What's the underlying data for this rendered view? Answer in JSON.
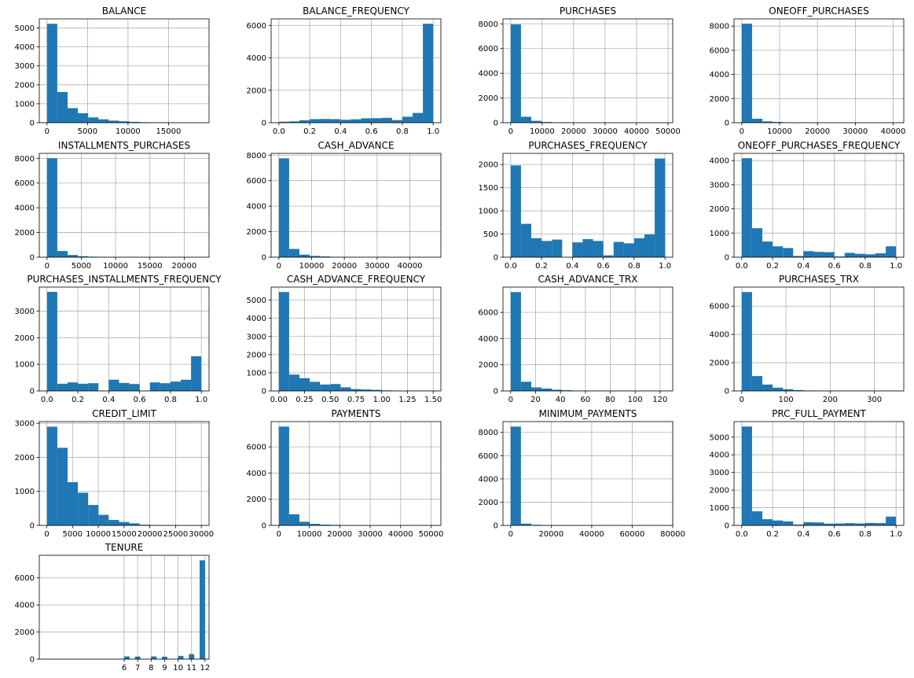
{
  "figure": {
    "bar_color": "#1f77b4",
    "grid_color": "#b0b0b0",
    "background": "#ffffff"
  },
  "chart_data": [
    {
      "type": "bar",
      "title": "BALANCE",
      "bin_edges": [
        0,
        1270,
        2540,
        3810,
        5080,
        6350,
        7620,
        8890,
        10160,
        11430,
        12700,
        13970,
        15240,
        16510,
        17780,
        19050
      ],
      "values": [
        5220,
        1620,
        770,
        500,
        280,
        180,
        110,
        75,
        45,
        25,
        15,
        8,
        5,
        3,
        1
      ],
      "xlim": [
        -950,
        20000
      ],
      "ylim": [
        0,
        5480
      ],
      "xticks": [
        0,
        5000,
        10000,
        15000
      ],
      "xtick_labels": [
        "0",
        "5000",
        "10000",
        "15000"
      ],
      "yticks": [
        0,
        1000,
        2000,
        3000,
        4000,
        5000
      ],
      "ytick_labels": [
        "0",
        "1000",
        "2000",
        "3000",
        "4000",
        "5000"
      ],
      "grid": true
    },
    {
      "type": "bar",
      "title": "BALANCE_FREQUENCY",
      "bin_edges": [
        0,
        0.0667,
        0.1333,
        0.2,
        0.2667,
        0.3333,
        0.4,
        0.4667,
        0.5333,
        0.6,
        0.6667,
        0.7333,
        0.8,
        0.8667,
        0.9333,
        1.0
      ],
      "values": [
        60,
        80,
        150,
        220,
        230,
        220,
        180,
        210,
        270,
        280,
        300,
        160,
        370,
        600,
        6100
      ],
      "xlim": [
        -0.05,
        1.05
      ],
      "ylim": [
        0,
        6400
      ],
      "xticks": [
        0,
        0.2,
        0.4,
        0.6,
        0.8,
        1.0
      ],
      "xtick_labels": [
        "0.0",
        "0.2",
        "0.4",
        "0.6",
        "0.8",
        "1.0"
      ],
      "yticks": [
        0,
        2000,
        4000,
        6000
      ],
      "ytick_labels": [
        "0",
        "2000",
        "4000",
        "6000"
      ],
      "grid": true
    },
    {
      "type": "bar",
      "title": "PURCHASES",
      "bin_edges": [
        0,
        3270,
        6540,
        9810,
        13080,
        16350,
        19620,
        22890,
        26160,
        29430,
        32700,
        35970,
        39240,
        42510,
        45780,
        49050
      ],
      "values": [
        7950,
        480,
        150,
        60,
        25,
        12,
        8,
        5,
        3,
        2,
        1,
        1,
        1,
        0,
        1
      ],
      "xlim": [
        -2450,
        51500
      ],
      "ylim": [
        0,
        8400
      ],
      "xticks": [
        0,
        10000,
        20000,
        30000,
        40000,
        50000
      ],
      "xtick_labels": [
        "0",
        "10000",
        "20000",
        "30000",
        "40000",
        "50000"
      ],
      "yticks": [
        0,
        2000,
        4000,
        6000,
        8000
      ],
      "ytick_labels": [
        "0",
        "2000",
        "4000",
        "6000",
        "8000"
      ],
      "grid": true
    },
    {
      "type": "bar",
      "title": "ONEOFF_PURCHASES",
      "bin_edges": [
        0,
        2720,
        5440,
        8160,
        10880,
        13600,
        16320,
        19040,
        21760,
        24480,
        27200,
        29920,
        32640,
        35360,
        38080,
        40800
      ],
      "values": [
        8200,
        330,
        110,
        60,
        25,
        12,
        8,
        5,
        3,
        2,
        1,
        1,
        0,
        0,
        1
      ],
      "xlim": [
        -2040,
        42800
      ],
      "ylim": [
        0,
        8600
      ],
      "xticks": [
        0,
        10000,
        20000,
        30000,
        40000
      ],
      "xtick_labels": [
        "0",
        "10000",
        "20000",
        "30000",
        "40000"
      ],
      "yticks": [
        0,
        2000,
        4000,
        6000,
        8000
      ],
      "ytick_labels": [
        "0",
        "2000",
        "4000",
        "6000",
        "8000"
      ],
      "grid": true
    },
    {
      "type": "bar",
      "title": "INSTALLMENTS_PURCHASES",
      "bin_edges": [
        0,
        1500,
        3000,
        4500,
        6000,
        7500,
        9000,
        10500,
        12000,
        13500,
        15000,
        16500,
        18000,
        19500,
        21000,
        22500
      ],
      "values": [
        8000,
        500,
        180,
        80,
        40,
        20,
        10,
        6,
        4,
        2,
        1,
        1,
        0,
        0,
        1
      ],
      "xlim": [
        -1125,
        23625
      ],
      "ylim": [
        0,
        8400
      ],
      "xticks": [
        0,
        5000,
        10000,
        15000,
        20000
      ],
      "xtick_labels": [
        "0",
        "5000",
        "10000",
        "15000",
        "20000"
      ],
      "yticks": [
        0,
        2000,
        4000,
        6000,
        8000
      ],
      "ytick_labels": [
        "0",
        "2000",
        "4000",
        "6000",
        "8000"
      ],
      "grid": true
    },
    {
      "type": "bar",
      "title": "CASH_ADVANCE",
      "bin_edges": [
        0,
        3140,
        6280,
        9420,
        12560,
        15700,
        18840,
        21980,
        25120,
        28260,
        31400,
        34540,
        37680,
        40820,
        43960,
        47100
      ],
      "values": [
        7750,
        650,
        200,
        100,
        60,
        30,
        15,
        8,
        5,
        3,
        2,
        1,
        1,
        0,
        1
      ],
      "xlim": [
        -2355,
        49455
      ],
      "ylim": [
        0,
        8140
      ],
      "xticks": [
        0,
        10000,
        20000,
        30000,
        40000
      ],
      "xtick_labels": [
        "0",
        "10000",
        "20000",
        "30000",
        "40000"
      ],
      "yticks": [
        0,
        2000,
        4000,
        6000,
        8000
      ],
      "ytick_labels": [
        "0",
        "2000",
        "4000",
        "6000",
        "8000"
      ],
      "grid": true
    },
    {
      "type": "bar",
      "title": "PURCHASES_FREQUENCY",
      "bin_edges": [
        0,
        0.0667,
        0.1333,
        0.2,
        0.2667,
        0.3333,
        0.4,
        0.4667,
        0.5333,
        0.6,
        0.6667,
        0.7333,
        0.8,
        0.8667,
        0.9333,
        1.0
      ],
      "values": [
        1980,
        720,
        410,
        350,
        380,
        0,
        320,
        390,
        350,
        40,
        330,
        300,
        410,
        490,
        2130
      ],
      "xlim": [
        -0.05,
        1.05
      ],
      "ylim": [
        0,
        2240
      ],
      "xticks": [
        0,
        0.2,
        0.4,
        0.6,
        0.8,
        1.0
      ],
      "xtick_labels": [
        "0.0",
        "0.2",
        "0.4",
        "0.6",
        "0.8",
        "1.0"
      ],
      "yticks": [
        0,
        500,
        1000,
        1500,
        2000
      ],
      "ytick_labels": [
        "0",
        "500",
        "1000",
        "1500",
        "2000"
      ],
      "grid": true
    },
    {
      "type": "bar",
      "title": "ONEOFF_PURCHASES_FREQUENCY",
      "bin_edges": [
        0,
        0.0667,
        0.1333,
        0.2,
        0.2667,
        0.3333,
        0.4,
        0.4667,
        0.5333,
        0.6,
        0.6667,
        0.7333,
        0.8,
        0.8667,
        0.9333,
        1.0
      ],
      "values": [
        4100,
        1200,
        650,
        450,
        380,
        50,
        250,
        220,
        210,
        30,
        180,
        140,
        120,
        160,
        450
      ],
      "xlim": [
        -0.05,
        1.05
      ],
      "ylim": [
        0,
        4300
      ],
      "xticks": [
        0,
        0.2,
        0.4,
        0.6,
        0.8,
        1.0
      ],
      "xtick_labels": [
        "0.0",
        "0.2",
        "0.4",
        "0.6",
        "0.8",
        "1.0"
      ],
      "yticks": [
        0,
        1000,
        2000,
        3000,
        4000
      ],
      "ytick_labels": [
        "0",
        "1000",
        "2000",
        "3000",
        "4000"
      ],
      "grid": true
    },
    {
      "type": "bar",
      "title": "PURCHASES_INSTALLMENTS_FREQUENCY",
      "bin_edges": [
        0,
        0.0667,
        0.1333,
        0.2,
        0.2667,
        0.3333,
        0.4,
        0.4667,
        0.5333,
        0.6,
        0.6667,
        0.7333,
        0.8,
        0.8667,
        0.9333,
        1.0
      ],
      "values": [
        3720,
        270,
        320,
        270,
        290,
        0,
        420,
        300,
        260,
        0,
        320,
        290,
        350,
        420,
        1300
      ],
      "xlim": [
        -0.05,
        1.05
      ],
      "ylim": [
        0,
        3900
      ],
      "xticks": [
        0,
        0.2,
        0.4,
        0.6,
        0.8,
        1.0
      ],
      "xtick_labels": [
        "0.0",
        "0.2",
        "0.4",
        "0.6",
        "0.8",
        "1.0"
      ],
      "yticks": [
        0,
        1000,
        2000,
        3000
      ],
      "ytick_labels": [
        "0",
        "1000",
        "2000",
        "3000"
      ],
      "grid": true
    },
    {
      "type": "bar",
      "title": "CASH_ADVANCE_FREQUENCY",
      "bin_edges": [
        0,
        0.1,
        0.2,
        0.3,
        0.4,
        0.5,
        0.6,
        0.7,
        0.8,
        0.9,
        1.0,
        1.1,
        1.2,
        1.3,
        1.4,
        1.5
      ],
      "values": [
        5450,
        900,
        700,
        500,
        350,
        380,
        200,
        100,
        80,
        60,
        30,
        5,
        2,
        1,
        1
      ],
      "xlim": [
        -0.075,
        1.575
      ],
      "ylim": [
        0,
        5720
      ],
      "xticks": [
        0,
        0.25,
        0.5,
        0.75,
        1.0,
        1.25,
        1.5
      ],
      "xtick_labels": [
        "0.00",
        "0.25",
        "0.50",
        "0.75",
        "1.00",
        "1.25",
        "1.50"
      ],
      "yticks": [
        0,
        1000,
        2000,
        3000,
        4000,
        5000
      ],
      "ytick_labels": [
        "0",
        "1000",
        "2000",
        "3000",
        "4000",
        "5000"
      ],
      "grid": true
    },
    {
      "type": "bar",
      "title": "CASH_ADVANCE_TRX",
      "bin_edges": [
        0,
        8.27,
        16.53,
        24.8,
        33.07,
        41.33,
        49.6,
        57.87,
        66.13,
        74.4,
        82.67,
        90.93,
        99.2,
        107.47,
        115.73,
        124
      ],
      "values": [
        7550,
        700,
        270,
        180,
        90,
        50,
        20,
        10,
        5,
        3,
        2,
        1,
        1,
        0,
        1
      ],
      "xlim": [
        -6.2,
        130.2
      ],
      "ylim": [
        0,
        7930
      ],
      "xticks": [
        0,
        20,
        40,
        60,
        80,
        100,
        120
      ],
      "xtick_labels": [
        "0",
        "20",
        "40",
        "60",
        "80",
        "100",
        "120"
      ],
      "yticks": [
        0,
        2000,
        4000,
        6000
      ],
      "ytick_labels": [
        "0",
        "2000",
        "4000",
        "6000"
      ],
      "grid": true
    },
    {
      "type": "bar",
      "title": "PURCHASES_TRX",
      "bin_edges": [
        0,
        23.27,
        46.53,
        69.8,
        93.07,
        116.33,
        139.6,
        162.87,
        186.13,
        209.4,
        232.67,
        255.93,
        279.2,
        302.47,
        325.73,
        349
      ],
      "values": [
        7000,
        1050,
        450,
        230,
        120,
        60,
        30,
        15,
        8,
        5,
        3,
        2,
        1,
        1,
        1
      ],
      "xlim": [
        -17.45,
        366.45
      ],
      "ylim": [
        0,
        7350
      ],
      "xticks": [
        0,
        100,
        200,
        300
      ],
      "xtick_labels": [
        "0",
        "100",
        "200",
        "300"
      ],
      "yticks": [
        0,
        2000,
        4000,
        6000
      ],
      "ytick_labels": [
        "0",
        "2000",
        "4000",
        "6000"
      ],
      "grid": true
    },
    {
      "type": "bar",
      "title": "CREDIT_LIMIT",
      "bin_edges": [
        50,
        2047,
        4043,
        6040,
        8037,
        10033,
        12030,
        14027,
        16023,
        18020,
        20017,
        22013,
        24010,
        26007,
        28003,
        30000
      ],
      "values": [
        2900,
        2280,
        1270,
        960,
        600,
        310,
        160,
        100,
        60,
        20,
        10,
        5,
        2,
        1,
        1
      ],
      "xlim": [
        -1450,
        31500
      ],
      "ylim": [
        0,
        3050
      ],
      "xticks": [
        0,
        5000,
        10000,
        15000,
        20000,
        25000,
        30000
      ],
      "xtick_labels": [
        "0",
        "5000",
        "10000",
        "15000",
        "20000",
        "25000",
        "30000"
      ],
      "yticks": [
        0,
        1000,
        2000,
        3000
      ],
      "ytick_labels": [
        "0",
        "1000",
        "2000",
        "3000"
      ],
      "grid": true
    },
    {
      "type": "bar",
      "title": "PAYMENTS",
      "bin_edges": [
        0,
        3380,
        6760,
        10140,
        13520,
        16900,
        20280,
        23660,
        27040,
        30420,
        33800,
        37180,
        40560,
        43940,
        47320,
        50700
      ],
      "values": [
        7550,
        850,
        280,
        120,
        60,
        40,
        15,
        8,
        5,
        3,
        2,
        1,
        1,
        0,
        1
      ],
      "xlim": [
        -2535,
        53235
      ],
      "ylim": [
        0,
        7930
      ],
      "xticks": [
        0,
        10000,
        20000,
        30000,
        40000,
        50000
      ],
      "xtick_labels": [
        "0",
        "10000",
        "20000",
        "30000",
        "40000",
        "50000"
      ],
      "yticks": [
        0,
        2000,
        4000,
        6000
      ],
      "ytick_labels": [
        "0",
        "2000",
        "4000",
        "6000"
      ],
      "grid": true
    },
    {
      "type": "bar",
      "title": "MINIMUM_PAYMENTS",
      "bin_edges": [
        0,
        5070,
        10140,
        15210,
        20280,
        25350,
        30420,
        35490,
        40560,
        45630,
        50700,
        55770,
        60840,
        65910,
        70980,
        76050
      ],
      "values": [
        8500,
        150,
        50,
        20,
        10,
        5,
        3,
        2,
        1,
        1,
        1,
        0,
        1,
        0,
        1
      ],
      "xlim": [
        -3800,
        80000
      ],
      "ylim": [
        0,
        8930
      ],
      "xticks": [
        0,
        20000,
        40000,
        60000,
        80000
      ],
      "xtick_labels": [
        "0",
        "20000",
        "40000",
        "60000",
        "80000"
      ],
      "yticks": [
        0,
        2000,
        4000,
        6000,
        8000
      ],
      "ytick_labels": [
        "0",
        "2000",
        "4000",
        "6000",
        "8000"
      ],
      "grid": true
    },
    {
      "type": "bar",
      "title": "PRC_FULL_PAYMENT",
      "bin_edges": [
        0,
        0.0667,
        0.1333,
        0.2,
        0.2667,
        0.3333,
        0.4,
        0.4667,
        0.5333,
        0.6,
        0.6667,
        0.7333,
        0.8,
        0.8667,
        0.9333,
        1.0
      ],
      "values": [
        5600,
        800,
        350,
        280,
        230,
        50,
        180,
        170,
        100,
        110,
        130,
        110,
        140,
        130,
        500
      ],
      "xlim": [
        -0.05,
        1.05
      ],
      "ylim": [
        0,
        5880
      ],
      "xticks": [
        0,
        0.2,
        0.4,
        0.6,
        0.8,
        1.0
      ],
      "xtick_labels": [
        "0.0",
        "0.2",
        "0.4",
        "0.6",
        "0.8",
        "1.0"
      ],
      "yticks": [
        0,
        1000,
        2000,
        3000,
        4000,
        5000
      ],
      "ytick_labels": [
        "0",
        "1000",
        "2000",
        "3000",
        "4000",
        "5000"
      ],
      "grid": true
    },
    {
      "type": "bar",
      "title": "TENURE",
      "bin_edges": [
        6,
        6.4,
        6.8,
        7.2,
        7.6,
        8.0,
        8.4,
        8.8,
        9.2,
        9.6,
        10.0,
        10.4,
        10.8,
        11.2,
        11.6,
        12.0
      ],
      "values": [
        200,
        0,
        190,
        0,
        0,
        200,
        0,
        180,
        0,
        0,
        240,
        0,
        370,
        0,
        7300
      ],
      "xlim": [
        -0.3,
        12.3
      ],
      "ylim": [
        0,
        7670
      ],
      "xticks": [
        6,
        7,
        8,
        9,
        10,
        11,
        12
      ],
      "xtick_labels": [
        "6",
        "7",
        "8",
        "9",
        "10",
        "11",
        "12"
      ],
      "yticks": [
        0,
        2000,
        4000,
        6000
      ],
      "ytick_labels": [
        "0",
        "2000",
        "4000",
        "6000"
      ],
      "grid": true
    }
  ]
}
